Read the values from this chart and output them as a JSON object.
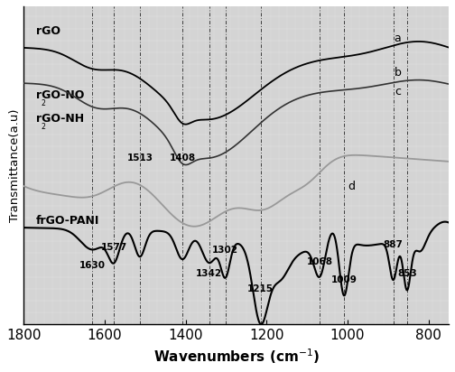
{
  "bg_color": "#ffffff",
  "plot_bg": "#d8d8d8",
  "xlim": [
    1800,
    750
  ],
  "ylim": [
    -1.05,
    1.1
  ],
  "xlabel": "Wavenumbers (cm$^{-1}$)",
  "ylabel": "Transmittance(a.u)",
  "xticks": [
    1800,
    1600,
    1400,
    1200,
    1000,
    800
  ],
  "dashed_lines": [
    1630,
    1577,
    1513,
    1408,
    1342,
    1302,
    1215,
    1068,
    1009,
    887,
    853
  ],
  "curve_a_color": "#000000",
  "curve_b_color": "#333333",
  "curve_c_color": "#999999",
  "curve_d_color": "#000000",
  "peak_labels_top": [
    [
      1513,
      0.04,
      "1513"
    ],
    [
      1408,
      0.04,
      "1408"
    ]
  ],
  "peak_labels_bot": [
    [
      1630,
      -0.62,
      "1630"
    ],
    [
      1577,
      -0.5,
      "1577"
    ],
    [
      1342,
      -0.68,
      "1342"
    ],
    [
      1302,
      -0.52,
      "1302"
    ],
    [
      1215,
      -0.78,
      "1215"
    ],
    [
      1068,
      -0.6,
      "1068"
    ],
    [
      1009,
      -0.72,
      "1009"
    ],
    [
      887,
      -0.48,
      "887"
    ],
    [
      853,
      -0.68,
      "853"
    ]
  ]
}
